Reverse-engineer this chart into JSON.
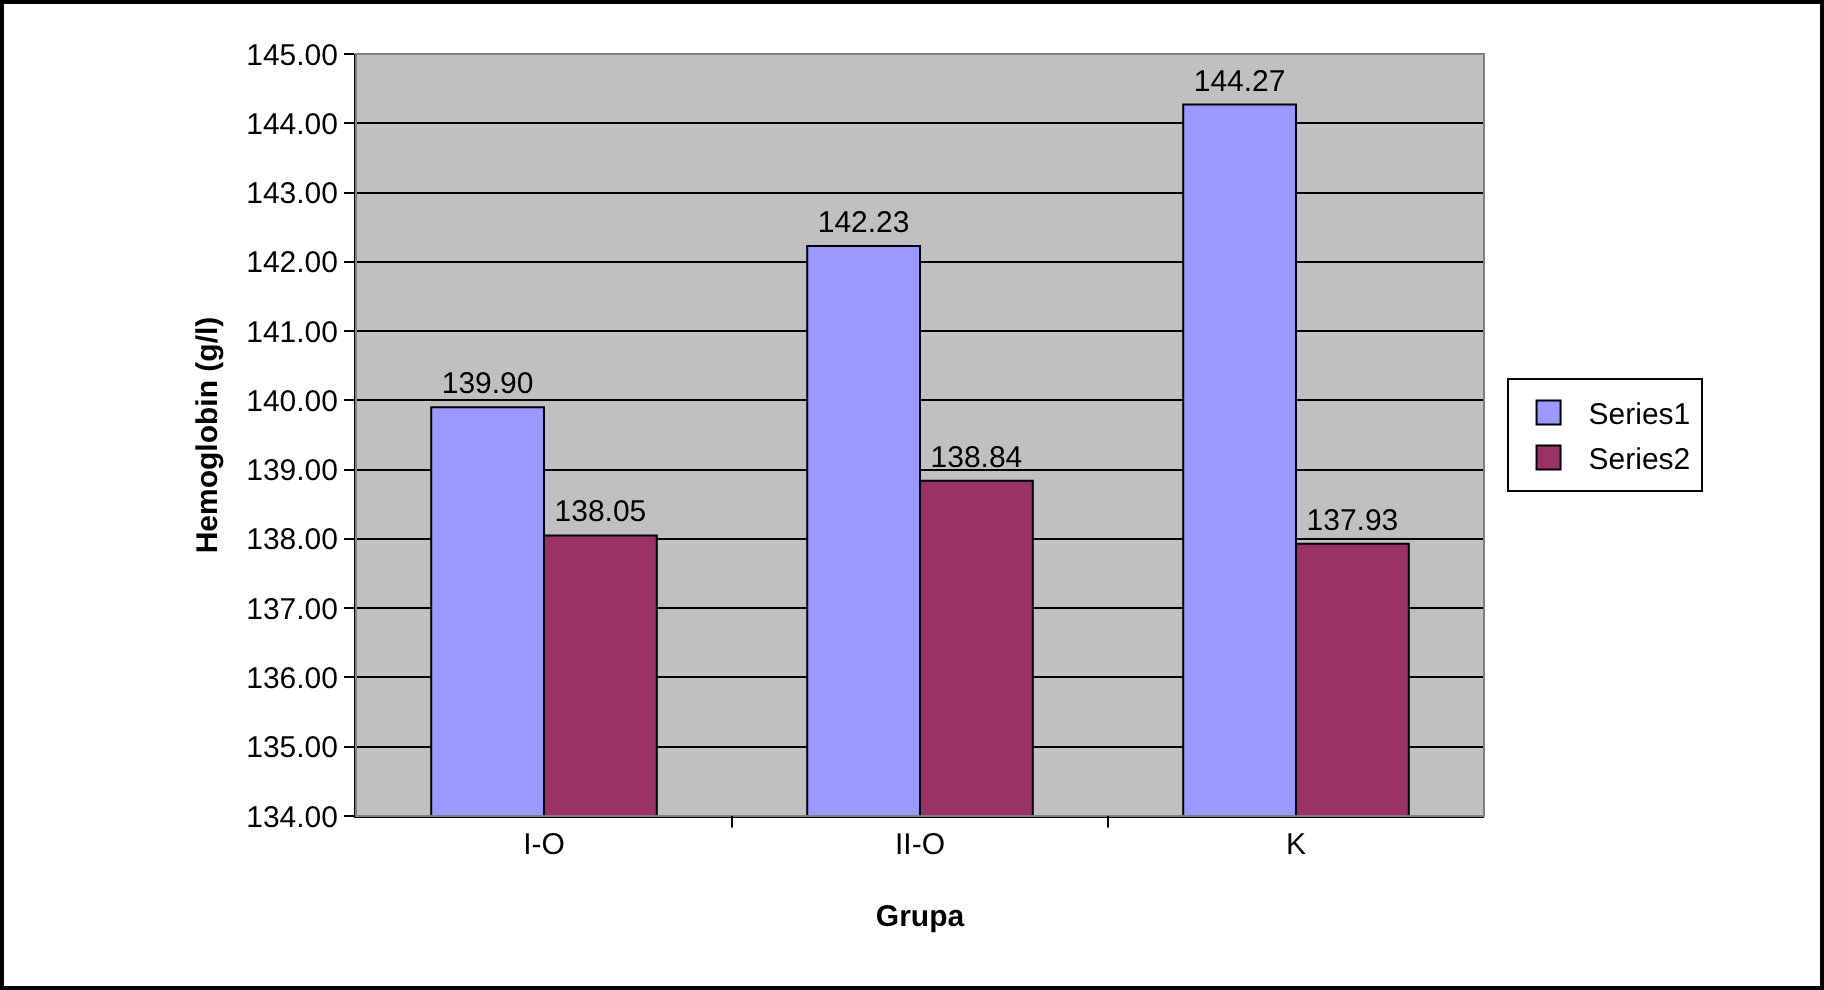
{
  "chart_data": {
    "type": "bar",
    "xlabel": "Grupa",
    "ylabel": "Hemoglobin (g/l)",
    "categories": [
      "I-O",
      "II-O",
      "K"
    ],
    "series": [
      {
        "name": "Series1",
        "color": "#9999ff",
        "values": [
          139.9,
          142.23,
          144.27
        ],
        "value_labels": [
          "139.90",
          "142.23",
          "144.27"
        ]
      },
      {
        "name": "Series2",
        "color": "#993366",
        "values": [
          138.05,
          138.84,
          137.93
        ],
        "value_labels": [
          "138.05",
          "138.84",
          "137.93"
        ]
      }
    ],
    "ylim": [
      134,
      145
    ],
    "yticks": [
      {
        "value": 134,
        "label": "134.00"
      },
      {
        "value": 135,
        "label": "135.00"
      },
      {
        "value": 136,
        "label": "136.00"
      },
      {
        "value": 137,
        "label": "137.00"
      },
      {
        "value": 138,
        "label": "138.00"
      },
      {
        "value": 139,
        "label": "139.00"
      },
      {
        "value": 140,
        "label": "140.00"
      },
      {
        "value": 141,
        "label": "141.00"
      },
      {
        "value": 142,
        "label": "142.00"
      },
      {
        "value": 143,
        "label": "143.00"
      },
      {
        "value": 144,
        "label": "144.00"
      },
      {
        "value": 145,
        "label": "145.00"
      }
    ],
    "grid": "y",
    "legend": "right"
  }
}
